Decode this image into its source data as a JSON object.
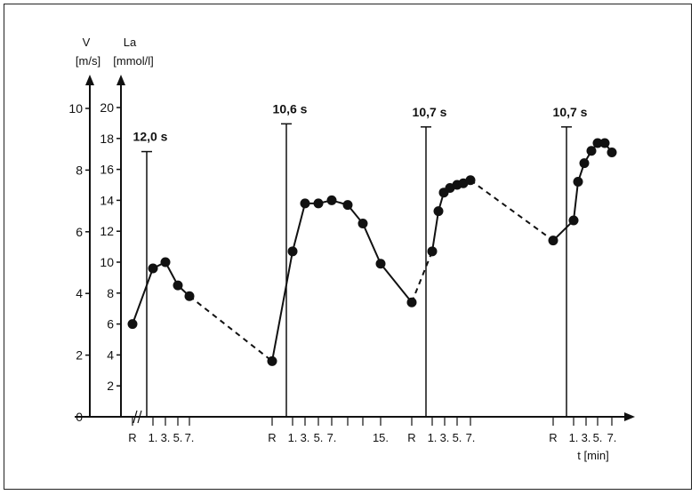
{
  "chart_data": {
    "type": "line",
    "title": "",
    "y_axes": [
      {
        "name": "V",
        "unit": "[m/s]",
        "ticks": [
          0,
          2,
          4,
          6,
          8,
          10
        ],
        "range": [
          0,
          10
        ]
      },
      {
        "name": "La",
        "unit": "[mmol/l]",
        "ticks": [
          2,
          4,
          6,
          8,
          10,
          12,
          14,
          16,
          18,
          20
        ],
        "range": [
          0,
          20
        ]
      }
    ],
    "x_axis": {
      "label": "t [min]",
      "break_mark": "//",
      "tick_labels": [
        "R",
        "1.",
        "3.",
        "5.",
        "7.",
        "R",
        "1.",
        "3.",
        "5.",
        "7.",
        "15.",
        "R",
        "1.",
        "3.",
        "5.",
        "7.",
        "R",
        "1.",
        "3.",
        "5.",
        "7."
      ]
    },
    "grid": false,
    "runs": [
      {
        "time_label": "12,0 s",
        "peak_velocity": 8.6
      },
      {
        "time_label": "10,6 s",
        "peak_velocity": 9.5
      },
      {
        "time_label": "10,7 s",
        "peak_velocity": 9.4
      },
      {
        "time_label": "10,7 s",
        "peak_velocity": 9.4
      }
    ],
    "series": [
      {
        "axis": "La",
        "segments": [
          {
            "style": "solid",
            "points": [
              [
                0,
                6.0
              ],
              [
                1,
                9.6
              ],
              [
                2,
                10.0
              ],
              [
                3,
                8.5
              ],
              [
                4,
                7.8
              ]
            ]
          },
          {
            "style": "dashed",
            "points": [
              [
                4,
                7.8
              ],
              [
                5,
                3.6
              ]
            ]
          },
          {
            "style": "solid",
            "points": [
              [
                5,
                3.6
              ],
              [
                6,
                10.7
              ],
              [
                7,
                13.8
              ],
              [
                8,
                13.8
              ],
              [
                9,
                14.0
              ],
              [
                10,
                13.7
              ],
              [
                11,
                12.5
              ],
              [
                12,
                9.9
              ],
              [
                13,
                7.4
              ]
            ]
          },
          {
            "style": "dashed",
            "points": [
              [
                13,
                7.4
              ],
              [
                14,
                10.7
              ]
            ]
          },
          {
            "style": "solid",
            "points": [
              [
                14,
                10.7
              ],
              [
                15,
                13.3
              ],
              [
                16,
                14.5
              ],
              [
                17,
                14.8
              ],
              [
                18,
                15.0
              ],
              [
                19,
                15.1
              ],
              [
                20,
                15.3
              ]
            ]
          },
          {
            "style": "dashed",
            "points": [
              [
                20,
                15.3
              ],
              [
                21,
                11.4
              ]
            ]
          },
          {
            "style": "solid",
            "points": [
              [
                21,
                11.4
              ],
              [
                22,
                12.7
              ],
              [
                23,
                15.2
              ],
              [
                24,
                16.4
              ],
              [
                25,
                17.2
              ],
              [
                26,
                17.7
              ],
              [
                27,
                17.7
              ],
              [
                28,
                17.1
              ]
            ]
          }
        ]
      }
    ]
  }
}
